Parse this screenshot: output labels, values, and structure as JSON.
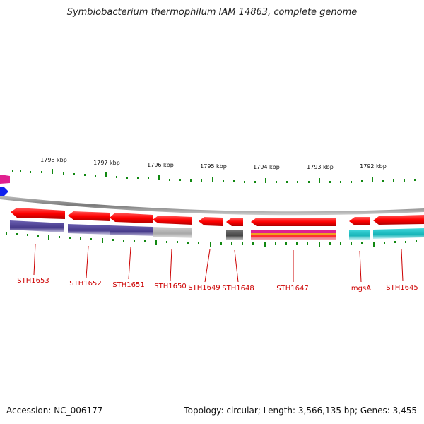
{
  "header": {
    "title": "Symbiobacterium thermophilum IAM 14863, complete genome"
  },
  "footer": {
    "accession": "Accession: NC_006177",
    "summary": "Topology: circular; Length: 3,566,135 bp; Genes: 3,455"
  },
  "ruler": {
    "labels": [
      "1798 kbp",
      "1797 kbp",
      "1796 kbp",
      "1795 kbp",
      "1794 kbp",
      "1793 kbp",
      "1792 kbp"
    ]
  },
  "genes": [
    {
      "name": "STH1653",
      "color": "#ff0000"
    },
    {
      "name": "STH1652",
      "color": "#ff0000"
    },
    {
      "name": "STH1651",
      "color": "#ff0000"
    },
    {
      "name": "STH1650",
      "color": "#ff0000"
    },
    {
      "name": "STH1649",
      "color": "#ff0000"
    },
    {
      "name": "STH1648",
      "color": "#ff0000"
    },
    {
      "name": "STH1647",
      "color": "#ff0000"
    },
    {
      "name": "mgsA",
      "color": "#ff0000"
    },
    {
      "name": "STH1645",
      "color": "#ff0000"
    }
  ],
  "colors": {
    "gene": "#ff0000",
    "backbone": "#888888",
    "tick": "#118811",
    "label": "#cc0000",
    "cog_purple": "#4b3f8e",
    "cog_gray": "#b0b0b0",
    "cog_dark": "#555555",
    "cog_teal": "#20c4c8",
    "cog_magenta": "#d0208a",
    "left_magenta": "#e0208f",
    "left_blue": "#1020ee"
  }
}
